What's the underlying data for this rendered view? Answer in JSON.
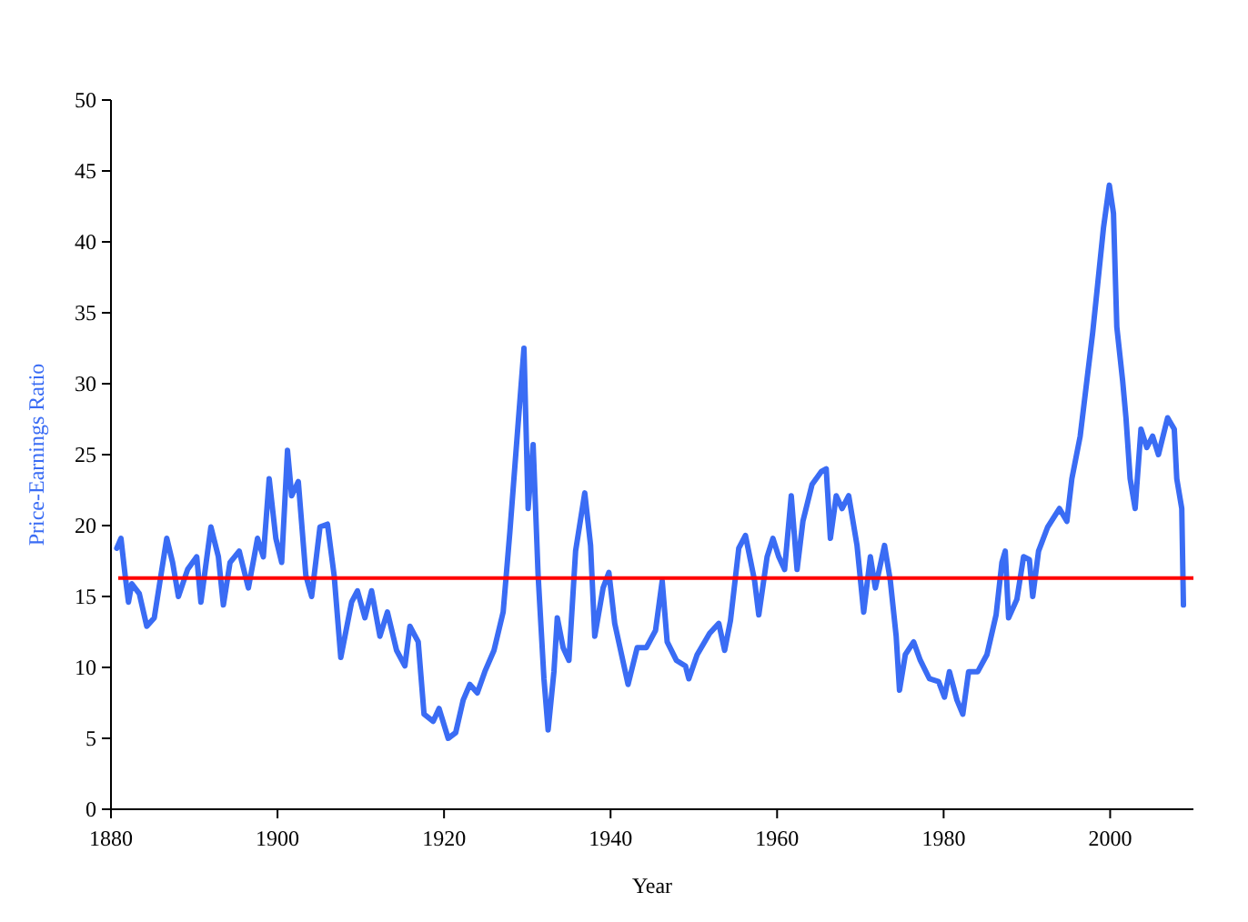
{
  "chart_data": {
    "type": "line",
    "xlabel": "Year",
    "ylabel": "Price-Earnings Ratio",
    "xlim": [
      1880,
      2010
    ],
    "xticks": [
      1880,
      1900,
      1920,
      1940,
      1960,
      1980,
      2000
    ],
    "ylim": [
      0,
      50
    ],
    "yticks": [
      0,
      5,
      10,
      15,
      20,
      25,
      30,
      35,
      40,
      45,
      50
    ],
    "grid": false,
    "marker": "none",
    "line_style": "solid",
    "ref_lines": [
      {
        "axis": "y",
        "value": 16.3,
        "color": "#ff0000"
      }
    ],
    "series": [
      {
        "color": "#3a6cf4",
        "x": [
          1880.7,
          1881.2,
          1881.7,
          1882.1,
          1882.5,
          1883.4,
          1884.3,
          1885.2,
          1886,
          1886.7,
          1887.4,
          1888.1,
          1889.2,
          1890.3,
          1890.8,
          1892,
          1892.9,
          1893.5,
          1894.3,
          1895.4,
          1896.5,
          1897.2,
          1897.6,
          1898.3,
          1899,
          1899.8,
          1900.5,
          1901.2,
          1901.7,
          1902.5,
          1903.4,
          1904.1,
          1905.1,
          1906,
          1906.8,
          1907.6,
          1908.9,
          1909.6,
          1910.5,
          1911.3,
          1912.3,
          1913.2,
          1914.3,
          1915.3,
          1915.9,
          1916.9,
          1917.6,
          1918.7,
          1919.4,
          1920.5,
          1921.4,
          1922.3,
          1923.1,
          1924,
          1924.9,
          1926,
          1927.1,
          1927.9,
          1928.9,
          1929.6,
          1930.1,
          1930.7,
          1931.3,
          1932,
          1932.5,
          1933.2,
          1933.6,
          1934.3,
          1935,
          1935.8,
          1936.9,
          1937.6,
          1938.1,
          1939.1,
          1939.8,
          1940.5,
          1942.1,
          1943.2,
          1944.3,
          1945.4,
          1946.2,
          1946.8,
          1947.9,
          1949,
          1949.4,
          1950.4,
          1951.9,
          1953,
          1953.7,
          1954.4,
          1955.4,
          1956.2,
          1957.3,
          1957.8,
          1958.8,
          1959.5,
          1960.2,
          1960.9,
          1961.7,
          1962.4,
          1963.1,
          1964.2,
          1965.3,
          1965.9,
          1966.4,
          1967.1,
          1967.8,
          1968.6,
          1969.6,
          1970.4,
          1971.2,
          1971.8,
          1972.9,
          1973.6,
          1974.3,
          1974.7,
          1975.4,
          1976.4,
          1977.2,
          1978.3,
          1979.4,
          1980.1,
          1980.7,
          1981.6,
          1982.3,
          1983,
          1984.1,
          1985.2,
          1986.3,
          1987,
          1987.4,
          1987.8,
          1988.8,
          1989.6,
          1990.3,
          1990.7,
          1991.4,
          1992.5,
          1993.9,
          1994.8,
          1995.4,
          1996.4,
          1997.2,
          1997.9,
          1998.5,
          1999.2,
          1999.9,
          2000.4,
          2000.8,
          2001.5,
          2001.9,
          2002.4,
          2003,
          2003.7,
          2004.4,
          2005.1,
          2005.8,
          2006.9,
          2007.7,
          2008,
          2008.6,
          2008.8
        ],
        "values": [
          18.4,
          19.1,
          16.5,
          14.6,
          15.9,
          15.2,
          12.9,
          13.5,
          16.5,
          19.1,
          17.4,
          15,
          16.9,
          17.8,
          14.6,
          19.9,
          17.8,
          14.4,
          17.4,
          18.2,
          15.6,
          17.8,
          19.1,
          17.8,
          23.3,
          19.1,
          17.4,
          25.3,
          22.1,
          23.1,
          16.5,
          15,
          19.9,
          20.1,
          16.5,
          10.7,
          14.6,
          15.4,
          13.5,
          15.4,
          12.2,
          13.9,
          11.2,
          10.1,
          12.9,
          11.8,
          6.7,
          6.2,
          7.1,
          5,
          5.4,
          7.7,
          8.8,
          8.2,
          9.7,
          11.2,
          13.9,
          19.5,
          27.2,
          32.5,
          21.2,
          25.7,
          16.5,
          9.2,
          5.6,
          9.7,
          13.5,
          11.4,
          10.5,
          18.2,
          22.3,
          18.6,
          12.2,
          15.6,
          16.7,
          13.1,
          8.8,
          11.4,
          11.4,
          12.6,
          16.1,
          11.8,
          10.5,
          10.1,
          9.2,
          10.9,
          12.4,
          13.1,
          11.2,
          13.3,
          18.4,
          19.3,
          16.1,
          13.7,
          17.8,
          19.1,
          17.8,
          16.9,
          22.1,
          16.9,
          20.3,
          22.9,
          23.8,
          24,
          19.1,
          22.1,
          21.2,
          22.1,
          18.6,
          13.9,
          17.8,
          15.6,
          18.6,
          16.1,
          12.2,
          8.4,
          10.9,
          11.8,
          10.5,
          9.2,
          9,
          7.9,
          9.7,
          7.7,
          6.7,
          9.7,
          9.7,
          10.9,
          13.7,
          17.4,
          18.2,
          13.5,
          14.8,
          17.8,
          17.6,
          15,
          18.2,
          19.9,
          21.2,
          20.3,
          23.3,
          26.3,
          30.2,
          33.6,
          37,
          41,
          44,
          42,
          34,
          30.2,
          27.6,
          23.3,
          21.2,
          26.8,
          25.5,
          26.3,
          25,
          27.6,
          26.8,
          23.3,
          21.2,
          14.4
        ]
      }
    ]
  }
}
